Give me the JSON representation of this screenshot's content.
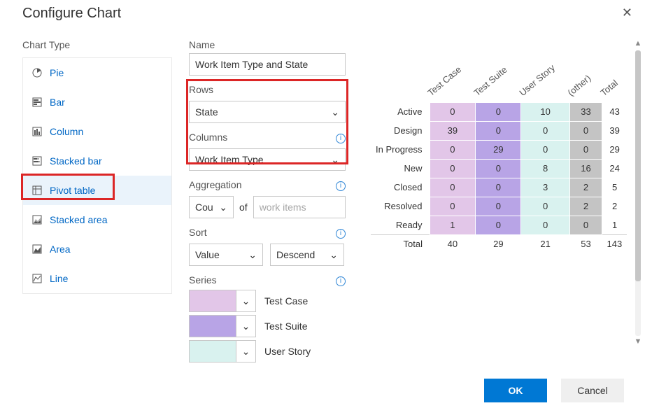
{
  "dialog": {
    "title": "Configure Chart"
  },
  "chart_type": {
    "label": "Chart Type",
    "items": [
      {
        "label": "Pie"
      },
      {
        "label": "Bar"
      },
      {
        "label": "Column"
      },
      {
        "label": "Stacked bar"
      },
      {
        "label": "Pivot table"
      },
      {
        "label": "Stacked area"
      },
      {
        "label": "Area"
      },
      {
        "label": "Line"
      }
    ],
    "selected_index": 4
  },
  "config": {
    "name_label": "Name",
    "name_value": "Work Item  Type and State",
    "rows_label": "Rows",
    "rows_value": "State",
    "columns_label": "Columns",
    "columns_value": "Work Item Type",
    "aggregation_label": "Aggregation",
    "aggregation_value": "Cou",
    "of_label": "of",
    "of_placeholder": "work items",
    "sort_label": "Sort",
    "sort_field": "Value",
    "sort_dir": "Descend",
    "series_label": "Series",
    "series": [
      {
        "label": "Test Case",
        "color": "#e2c6e8"
      },
      {
        "label": "Test Suite",
        "color": "#b8a4e6"
      },
      {
        "label": "User Story",
        "color": "#d9f2ef"
      }
    ]
  },
  "pivot": {
    "col_headers": [
      "Test Case",
      "Test Suite",
      "User Story",
      "(other)",
      "Total"
    ],
    "row_headers": [
      "Active",
      "Design",
      "In Progress",
      "New",
      "Closed",
      "Resolved",
      "Ready"
    ],
    "values": [
      [
        0,
        0,
        10,
        33,
        43
      ],
      [
        39,
        0,
        0,
        0,
        39
      ],
      [
        0,
        29,
        0,
        0,
        29
      ],
      [
        0,
        0,
        8,
        16,
        24
      ],
      [
        0,
        0,
        3,
        2,
        5
      ],
      [
        0,
        0,
        0,
        2,
        2
      ],
      [
        1,
        0,
        0,
        0,
        1
      ]
    ],
    "totals": [
      40,
      29,
      21,
      53,
      143
    ],
    "total_label": "Total",
    "col_colors": [
      "#e2c6e8",
      "#b8a4e6",
      "#d9f2ef",
      "#c4c4c4"
    ],
    "cell_bg_default": "#ffffff"
  },
  "footer": {
    "ok": "OK",
    "cancel": "Cancel"
  },
  "colors": {
    "link": "#0067c5",
    "primary": "#0078d4",
    "highlight_border": "#dc2626"
  }
}
